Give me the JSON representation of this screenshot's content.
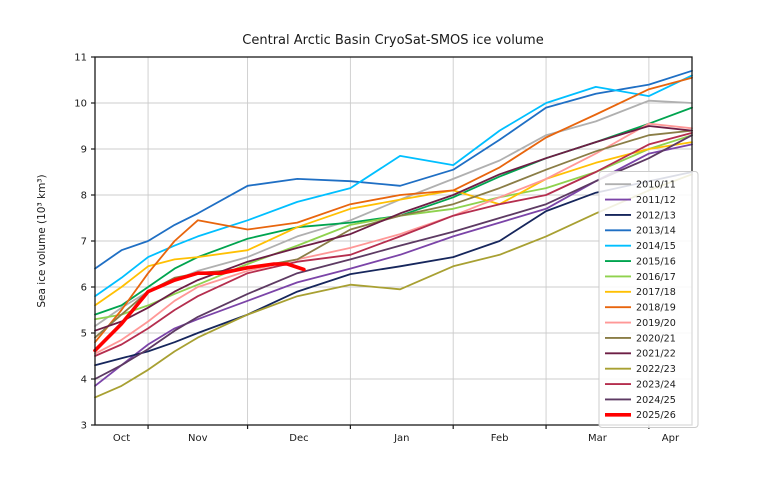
{
  "title": "Central Arctic Basin CryoSat-SMOS ice volume",
  "axes": {
    "ylabel": "Sea ice volume (10³ km³)",
    "x_ticklabels": [
      "Oct",
      "Nov",
      "Dec",
      "Jan",
      "Feb",
      "Mar",
      "Apr"
    ],
    "y_ticklabels": [
      "3",
      "4",
      "5",
      "6",
      "7",
      "8",
      "9",
      "10",
      "11"
    ]
  },
  "chart_data": {
    "type": "line",
    "x_unit": "days since Oct 16",
    "x_domain": [
      0,
      180
    ],
    "ylim": [
      3,
      11
    ],
    "grid": true,
    "legend_position": "lower right",
    "x_gridline_days": [
      16,
      46,
      77,
      108,
      136,
      167
    ],
    "x_ticklabel_days": [
      8,
      31,
      61.5,
      92.5,
      122,
      151.5,
      173.5
    ],
    "anchor_days": [
      0,
      8,
      16,
      24,
      31,
      46,
      61,
      77,
      92,
      108,
      122,
      136,
      151,
      167,
      180
    ],
    "series": [
      {
        "name": "2010/11",
        "color": "#b0b0b0",
        "width": 1.8,
        "values": [
          5.15,
          5.55,
          5.9,
          6.15,
          6.35,
          6.65,
          7.1,
          7.45,
          7.9,
          8.35,
          8.75,
          9.3,
          9.6,
          10.05,
          10.0
        ]
      },
      {
        "name": "2011/12",
        "color": "#7b44a8",
        "width": 1.8,
        "values": [
          3.85,
          4.3,
          4.75,
          5.1,
          5.3,
          5.7,
          6.1,
          6.4,
          6.7,
          7.1,
          7.4,
          7.7,
          8.3,
          8.9,
          9.1
        ]
      },
      {
        "name": "2012/13",
        "color": "#16265c",
        "width": 1.8,
        "values": [
          4.3,
          4.45,
          4.6,
          4.8,
          5.0,
          5.4,
          5.9,
          6.28,
          6.45,
          6.65,
          7.0,
          7.65,
          8.05,
          8.3,
          8.5
        ]
      },
      {
        "name": "2013/14",
        "color": "#1f6fc4",
        "width": 1.8,
        "values": [
          6.4,
          6.8,
          7.0,
          7.35,
          7.6,
          8.2,
          8.35,
          8.3,
          8.2,
          8.55,
          9.2,
          9.9,
          10.2,
          10.4,
          10.7
        ]
      },
      {
        "name": "2014/15",
        "color": "#00bfff",
        "width": 1.8,
        "values": [
          5.8,
          6.2,
          6.65,
          6.9,
          7.1,
          7.45,
          7.85,
          8.15,
          8.85,
          8.65,
          9.4,
          10.0,
          10.35,
          10.15,
          10.6
        ]
      },
      {
        "name": "2015/16",
        "color": "#00a44f",
        "width": 1.8,
        "values": [
          5.4,
          5.6,
          6.0,
          6.4,
          6.65,
          7.05,
          7.3,
          7.4,
          7.55,
          7.95,
          8.4,
          8.8,
          9.15,
          9.55,
          9.9
        ]
      },
      {
        "name": "2016/17",
        "color": "#8fd24e",
        "width": 1.8,
        "values": [
          5.3,
          5.4,
          5.6,
          5.85,
          6.05,
          6.5,
          6.9,
          7.35,
          7.55,
          7.7,
          7.95,
          8.15,
          8.5,
          9.0,
          9.3
        ]
      },
      {
        "name": "2017/18",
        "color": "#ffc003",
        "width": 1.8,
        "values": [
          5.6,
          6.0,
          6.45,
          6.6,
          6.65,
          6.8,
          7.3,
          7.7,
          7.9,
          8.1,
          7.8,
          8.35,
          8.7,
          9.0,
          9.15
        ]
      },
      {
        "name": "2018/19",
        "color": "#e8650d",
        "width": 1.8,
        "values": [
          4.8,
          5.5,
          6.3,
          7.0,
          7.45,
          7.25,
          7.4,
          7.8,
          8.0,
          8.1,
          8.6,
          9.25,
          9.75,
          10.3,
          10.55
        ]
      },
      {
        "name": "2019/20",
        "color": "#ff9897",
        "width": 1.8,
        "values": [
          4.55,
          4.85,
          5.25,
          5.7,
          6.0,
          6.35,
          6.6,
          6.85,
          7.15,
          7.55,
          7.95,
          8.35,
          8.9,
          9.55,
          9.45
        ]
      },
      {
        "name": "2020/21",
        "color": "#8a7d46",
        "width": 1.8,
        "values": [
          4.9,
          5.4,
          5.9,
          6.2,
          6.3,
          6.4,
          6.6,
          7.25,
          7.55,
          7.8,
          8.15,
          8.55,
          8.95,
          9.3,
          9.4
        ]
      },
      {
        "name": "2021/22",
        "color": "#6d1e45",
        "width": 1.8,
        "values": [
          5.05,
          5.25,
          5.55,
          5.9,
          6.15,
          6.55,
          6.85,
          7.15,
          7.6,
          8.0,
          8.45,
          8.8,
          9.15,
          9.5,
          9.4
        ]
      },
      {
        "name": "2022/23",
        "color": "#a8a032",
        "width": 1.8,
        "values": [
          3.6,
          3.85,
          4.2,
          4.6,
          4.9,
          5.4,
          5.8,
          6.05,
          5.95,
          6.45,
          6.7,
          7.1,
          7.6,
          8.1,
          8.45
        ]
      },
      {
        "name": "2023/24",
        "color": "#b52e4e",
        "width": 1.8,
        "values": [
          4.5,
          4.75,
          5.1,
          5.5,
          5.8,
          6.3,
          6.55,
          6.7,
          7.1,
          7.55,
          7.8,
          8.0,
          8.5,
          9.1,
          9.35
        ]
      },
      {
        "name": "2024/25",
        "color": "#5d3a63",
        "width": 1.8,
        "values": [
          4.0,
          4.3,
          4.65,
          5.05,
          5.35,
          5.85,
          6.3,
          6.6,
          6.9,
          7.2,
          7.5,
          7.8,
          8.3,
          8.8,
          9.3
        ]
      },
      {
        "name": "2025/26",
        "color": "#ff0000",
        "width": 3.6,
        "days": [
          0,
          8,
          16,
          24,
          31,
          38,
          46,
          54,
          58,
          63
        ],
        "values": [
          4.62,
          5.2,
          5.9,
          6.15,
          6.3,
          6.3,
          6.42,
          6.5,
          6.5,
          6.38
        ]
      }
    ]
  }
}
